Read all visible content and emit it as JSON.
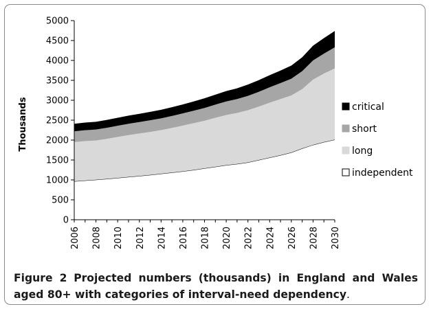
{
  "chart_data": {
    "type": "area",
    "stacked": true,
    "title": "",
    "xlabel": "",
    "ylabel": "Thousands",
    "ylim": [
      0,
      5000
    ],
    "yticks": [
      0,
      500,
      1000,
      1500,
      2000,
      2500,
      3000,
      3500,
      4000,
      4500,
      5000
    ],
    "xticks": [
      "2006",
      "2008",
      "2010",
      "2012",
      "2014",
      "2016",
      "2018",
      "2020",
      "2022",
      "2024",
      "2026",
      "2028",
      "2030"
    ],
    "x": [
      2006,
      2007,
      2008,
      2009,
      2010,
      2011,
      2012,
      2013,
      2014,
      2015,
      2016,
      2017,
      2018,
      2019,
      2020,
      2021,
      2022,
      2023,
      2024,
      2025,
      2026,
      2027,
      2028,
      2029,
      2030
    ],
    "grid": false,
    "legend_position": "right",
    "series": [
      {
        "name": "independent",
        "color": "#ffffff",
        "values": [
          965,
          985,
          1005,
          1025,
          1050,
          1075,
          1100,
          1125,
          1155,
          1185,
          1215,
          1250,
          1290,
          1330,
          1370,
          1400,
          1440,
          1500,
          1560,
          1620,
          1690,
          1790,
          1880,
          1950,
          2010
        ]
      },
      {
        "name": "long",
        "color": "#d9d9d9",
        "values": [
          985,
          990,
          985,
          1005,
          1030,
          1050,
          1065,
          1080,
          1095,
          1120,
          1150,
          1175,
          1195,
          1230,
          1260,
          1280,
          1310,
          1340,
          1380,
          1410,
          1430,
          1490,
          1640,
          1720,
          1790
        ]
      },
      {
        "name": "short",
        "color": "#a6a6a6",
        "values": [
          270,
          272,
          275,
          278,
          280,
          285,
          288,
          292,
          295,
          300,
          305,
          312,
          320,
          330,
          340,
          350,
          360,
          372,
          385,
          400,
          420,
          450,
          480,
          500,
          530
        ]
      },
      {
        "name": "critical",
        "color": "#000000",
        "values": [
          190,
          193,
          195,
          198,
          200,
          205,
          207,
          213,
          215,
          220,
          225,
          233,
          245,
          250,
          260,
          270,
          285,
          293,
          305,
          315,
          330,
          350,
          370,
          390,
          410
        ]
      }
    ]
  },
  "caption": {
    "label": "Figure 2",
    "text": "Projected numbers (thousands) in England and Wales aged 80+ with categories of interval-need dependency",
    "end": "."
  }
}
